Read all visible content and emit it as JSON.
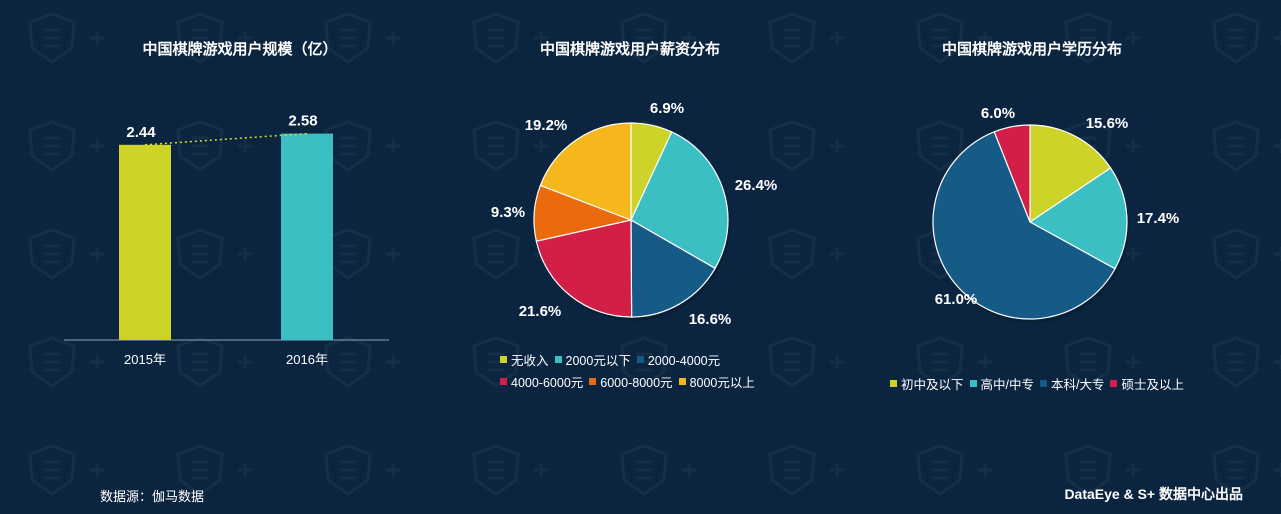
{
  "charts": {
    "users": {
      "title": "中国棋牌游戏用户规模（亿）"
    },
    "salary": {
      "title": "中国棋牌游戏用户薪资分布"
    },
    "education": {
      "title": "中国棋牌游戏用户学历分布"
    }
  },
  "chart_data": [
    {
      "type": "bar",
      "title": "中国棋牌游戏用户规模（亿）",
      "categories": [
        "2015年",
        "2016年"
      ],
      "values": [
        2.44,
        2.58
      ],
      "value_labels": [
        "2.44",
        "2.58"
      ],
      "colors": [
        "#cdd329",
        "#3bbfc3"
      ],
      "trendline": "dotted",
      "trend_color": "#d8e12a"
    },
    {
      "type": "pie",
      "title": "中国棋牌游戏用户薪资分布",
      "labels": [
        "无收入",
        "2000元以下",
        "2000-4000元",
        "4000-6000元",
        "6000-8000元",
        "8000元以上"
      ],
      "values": [
        6.9,
        26.4,
        16.6,
        21.6,
        9.3,
        19.2
      ],
      "value_labels": [
        "6.9%",
        "26.4%",
        "16.6%",
        "21.6%",
        "9.3%",
        "19.2%"
      ],
      "colors": [
        "#cdd329",
        "#3bbfc3",
        "#165a86",
        "#d31f48",
        "#ea6a0c",
        "#f6b71d"
      ],
      "legend_rows": [
        [
          0,
          1,
          2
        ],
        [
          3,
          4,
          5
        ]
      ]
    },
    {
      "type": "pie",
      "title": "中国棋牌游戏用户学历分布",
      "labels": [
        "初中及以下",
        "高中/中专",
        "本科/大专",
        "硕士及以上"
      ],
      "values": [
        15.6,
        17.4,
        61.0,
        6.0
      ],
      "value_labels": [
        "15.6%",
        "17.4%",
        "61.0%",
        "6.0%"
      ],
      "colors": [
        "#cdd329",
        "#3bbfc3",
        "#165a86",
        "#d31f48"
      ],
      "legend_rows": [
        [
          0,
          1,
          2,
          3
        ]
      ]
    }
  ],
  "footer": {
    "source": "数据源：伽马数据",
    "brand": "DataEye & S+ 数据中心出品"
  }
}
